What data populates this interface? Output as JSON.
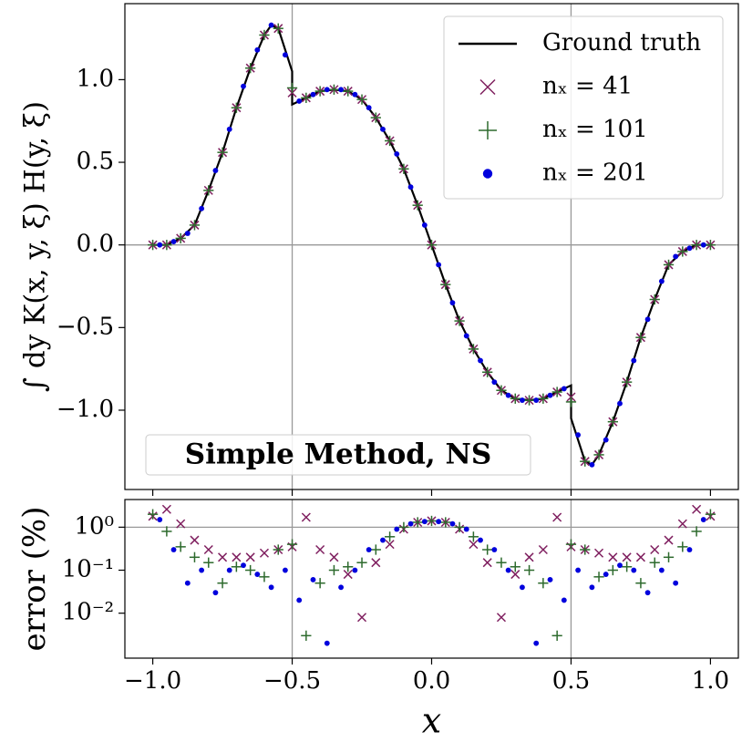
{
  "chart_data": [
    {
      "type": "line",
      "ylabel": "∫ dy K(x, y, ξ) H(y, ξ)",
      "annotation": "Simple Method, NS",
      "legend": "upper right",
      "xlim": [
        -1.1,
        1.1
      ],
      "ylim": [
        -1.48,
        1.46
      ],
      "yticks": [
        {
          "value": 1,
          "label": "1.0"
        },
        {
          "value": 0.5,
          "label": "0.5"
        },
        {
          "value": 0,
          "label": "0.0"
        },
        {
          "value": -0.5,
          "label": "−0.5"
        },
        {
          "value": -1,
          "label": "−1.0"
        }
      ],
      "hlines": [
        0
      ],
      "vlines": [
        -0.5,
        0.5
      ],
      "series": [
        {
          "name": "Ground truth",
          "color": "#000000",
          "x": [
            -1,
            -0.95,
            -0.9,
            -0.85,
            -0.8,
            -0.75,
            -0.7,
            -0.65,
            -0.6,
            -0.575,
            -0.55,
            -0.5,
            -0.5,
            -0.45,
            -0.4,
            -0.35,
            -0.3,
            -0.25,
            -0.2,
            -0.15,
            -0.1,
            -0.05,
            0,
            0.05,
            0.1,
            0.15,
            0.2,
            0.25,
            0.3,
            0.35,
            0.4,
            0.45,
            0.5,
            0.5,
            0.55,
            0.575,
            0.6,
            0.65,
            0.7,
            0.75,
            0.8,
            0.85,
            0.9,
            0.95,
            1
          ],
          "values": [
            0,
            0,
            0.04,
            0.12,
            0.33,
            0.56,
            0.83,
            1.07,
            1.27,
            1.33,
            1.31,
            1.05,
            0.85,
            0.89,
            0.93,
            0.94,
            0.93,
            0.88,
            0.77,
            0.63,
            0.46,
            0.24,
            0,
            -0.24,
            -0.46,
            -0.63,
            -0.77,
            -0.88,
            -0.93,
            -0.94,
            -0.93,
            -0.89,
            -0.85,
            -1.05,
            -1.31,
            -1.33,
            -1.27,
            -1.07,
            -0.83,
            -0.56,
            -0.33,
            -0.12,
            -0.04,
            0,
            0
          ]
        },
        {
          "name": "nₓ = 41",
          "marker": "x",
          "color": "#7f1f5f",
          "x": [
            -1,
            -0.95,
            -0.9,
            -0.85,
            -0.8,
            -0.75,
            -0.7,
            -0.65,
            -0.6,
            -0.55,
            -0.5,
            -0.45,
            -0.4,
            -0.35,
            -0.3,
            -0.25,
            -0.2,
            -0.15,
            -0.1,
            -0.05,
            0,
            0.05,
            0.1,
            0.15,
            0.2,
            0.25,
            0.3,
            0.35,
            0.4,
            0.45,
            0.5,
            0.55,
            0.6,
            0.65,
            0.7,
            0.75,
            0.8,
            0.85,
            0.9,
            0.95,
            1
          ],
          "values": [
            0,
            0,
            0.04,
            0.12,
            0.33,
            0.56,
            0.83,
            1.07,
            1.27,
            1.31,
            0.92,
            0.89,
            0.93,
            0.94,
            0.93,
            0.88,
            0.77,
            0.63,
            0.46,
            0.24,
            0,
            -0.24,
            -0.46,
            -0.63,
            -0.77,
            -0.88,
            -0.93,
            -0.94,
            -0.93,
            -0.89,
            -0.92,
            -1.31,
            -1.27,
            -1.07,
            -0.83,
            -0.56,
            -0.33,
            -0.12,
            -0.04,
            0,
            0
          ]
        },
        {
          "name": "nₓ = 101",
          "marker": "+",
          "color": "#2d6a2d",
          "x": [
            -1,
            -0.95,
            -0.9,
            -0.85,
            -0.8,
            -0.75,
            -0.7,
            -0.65,
            -0.6,
            -0.55,
            -0.5,
            -0.45,
            -0.4,
            -0.35,
            -0.3,
            -0.25,
            -0.2,
            -0.15,
            -0.1,
            -0.05,
            0,
            0.05,
            0.1,
            0.15,
            0.2,
            0.25,
            0.3,
            0.35,
            0.4,
            0.45,
            0.5,
            0.55,
            0.6,
            0.65,
            0.7,
            0.75,
            0.8,
            0.85,
            0.9,
            0.95,
            1
          ],
          "values": [
            0,
            0,
            0.04,
            0.12,
            0.33,
            0.56,
            0.83,
            1.07,
            1.27,
            1.31,
            0.95,
            0.89,
            0.93,
            0.94,
            0.93,
            0.88,
            0.77,
            0.63,
            0.46,
            0.24,
            0,
            -0.24,
            -0.46,
            -0.63,
            -0.77,
            -0.88,
            -0.93,
            -0.94,
            -0.93,
            -0.89,
            -0.95,
            -1.31,
            -1.27,
            -1.07,
            -0.83,
            -0.56,
            -0.33,
            -0.12,
            -0.04,
            0,
            0
          ]
        },
        {
          "name": "nₓ = 201",
          "marker": "o",
          "color": "#0000dd",
          "x": [
            -0.975,
            -0.925,
            -0.875,
            -0.825,
            -0.775,
            -0.725,
            -0.675,
            -0.625,
            -0.575,
            -0.525,
            -0.475,
            -0.425,
            -0.375,
            -0.325,
            -0.275,
            -0.225,
            -0.175,
            -0.125,
            -0.075,
            -0.025,
            0.025,
            0.075,
            0.125,
            0.175,
            0.225,
            0.275,
            0.325,
            0.375,
            0.425,
            0.475,
            0.525,
            0.575,
            0.625,
            0.675,
            0.725,
            0.775,
            0.825,
            0.875,
            0.925,
            0.975
          ],
          "values": [
            0,
            0.02,
            0.07,
            0.22,
            0.45,
            0.7,
            0.96,
            1.18,
            1.33,
            1.15,
            0.87,
            0.91,
            0.94,
            0.94,
            0.91,
            0.83,
            0.7,
            0.55,
            0.35,
            0.12,
            -0.12,
            -0.35,
            -0.55,
            -0.7,
            -0.83,
            -0.91,
            -0.94,
            -0.94,
            -0.91,
            -0.87,
            -1.15,
            -1.33,
            -1.18,
            -0.96,
            -0.7,
            -0.45,
            -0.22,
            -0.07,
            -0.02,
            0
          ]
        }
      ]
    },
    {
      "type": "scatter",
      "xlabel": "x",
      "ylabel": "error (%)",
      "log_y": true,
      "xlim": [
        -1.1,
        1.1
      ],
      "ylim": [
        0.0009,
        4.4
      ],
      "xticks": [
        {
          "value": -1,
          "label": "−1.0"
        },
        {
          "value": -0.5,
          "label": "−0.5"
        },
        {
          "value": 0,
          "label": "0.0"
        },
        {
          "value": 0.5,
          "label": "0.5"
        },
        {
          "value": 1,
          "label": "1.0"
        }
      ],
      "yticks": [
        {
          "value": 1,
          "label": "10⁰"
        },
        {
          "value": 0.1,
          "label": "10⁻¹"
        },
        {
          "value": 0.01,
          "label": "10⁻²"
        }
      ],
      "hlines": [
        1
      ],
      "vlines": [
        -0.5,
        0.5
      ],
      "series": [
        {
          "marker": "x",
          "color": "#7f1f5f",
          "x": [
            -1,
            -0.95,
            -0.9,
            -0.85,
            -0.8,
            -0.75,
            -0.7,
            -0.65,
            -0.6,
            -0.55,
            -0.5,
            -0.45,
            -0.4,
            -0.35,
            -0.3,
            -0.25,
            -0.2,
            -0.15,
            -0.1,
            -0.05,
            0,
            0.05,
            0.1,
            0.15,
            0.2,
            0.25,
            0.3,
            0.35,
            0.4,
            0.45,
            0.5,
            0.55,
            0.6,
            0.65,
            0.7,
            0.75,
            0.8,
            0.85,
            0.9,
            0.95,
            1
          ],
          "values": [
            1.8,
            2.6,
            1.2,
            0.5,
            0.3,
            0.2,
            0.2,
            0.2,
            0.25,
            0.3,
            0.35,
            1.7,
            0.3,
            0.2,
            0.08,
            0.008,
            0.15,
            0.4,
            0.9,
            1.3,
            1.4,
            1.3,
            0.9,
            0.4,
            0.15,
            0.008,
            0.08,
            0.2,
            0.3,
            1.7,
            0.35,
            0.3,
            0.25,
            0.2,
            0.2,
            0.2,
            0.3,
            0.5,
            1.2,
            2.6,
            1.8
          ]
        },
        {
          "marker": "+",
          "color": "#2d6a2d",
          "x": [
            -1,
            -0.95,
            -0.9,
            -0.85,
            -0.8,
            -0.75,
            -0.7,
            -0.65,
            -0.6,
            -0.55,
            -0.5,
            -0.45,
            -0.4,
            -0.35,
            -0.3,
            -0.25,
            -0.2,
            -0.15,
            -0.1,
            -0.05,
            0,
            0.05,
            0.1,
            0.15,
            0.2,
            0.25,
            0.3,
            0.35,
            0.4,
            0.45,
            0.5,
            0.55,
            0.6,
            0.65,
            0.7,
            0.75,
            0.8,
            0.85,
            0.9,
            0.95,
            1
          ],
          "values": [
            2,
            0.8,
            0.35,
            0.2,
            0.15,
            0.05,
            0.12,
            0.1,
            0.07,
            0.3,
            0.4,
            0.003,
            0.05,
            0.1,
            0.12,
            0.15,
            0.3,
            0.6,
            1,
            1.3,
            1.4,
            1.3,
            1,
            0.6,
            0.3,
            0.15,
            0.12,
            0.1,
            0.05,
            0.003,
            0.4,
            0.3,
            0.07,
            0.1,
            0.12,
            0.05,
            0.15,
            0.2,
            0.35,
            0.8,
            2
          ]
        },
        {
          "marker": "o",
          "color": "#0000dd",
          "x": [
            -0.975,
            -0.925,
            -0.875,
            -0.825,
            -0.775,
            -0.725,
            -0.675,
            -0.625,
            -0.575,
            -0.525,
            -0.475,
            -0.425,
            -0.375,
            -0.325,
            -0.275,
            -0.225,
            -0.175,
            -0.125,
            -0.075,
            -0.025,
            0.025,
            0.075,
            0.125,
            0.175,
            0.225,
            0.275,
            0.325,
            0.375,
            0.425,
            0.475,
            0.525,
            0.575,
            0.625,
            0.675,
            0.725,
            0.775,
            0.825,
            0.875,
            0.925,
            0.975
          ],
          "values": [
            1.5,
            0.3,
            0.05,
            0.1,
            0.03,
            0.1,
            0.13,
            0.08,
            0.04,
            0.1,
            0.02,
            0.06,
            0.002,
            0.04,
            0.1,
            0.3,
            0.5,
            0.9,
            1.2,
            1.35,
            1.35,
            1.2,
            0.9,
            0.5,
            0.3,
            0.1,
            0.04,
            0.002,
            0.06,
            0.02,
            0.1,
            0.04,
            0.08,
            0.13,
            0.1,
            0.03,
            0.1,
            0.05,
            0.3,
            1.5
          ]
        }
      ]
    }
  ]
}
